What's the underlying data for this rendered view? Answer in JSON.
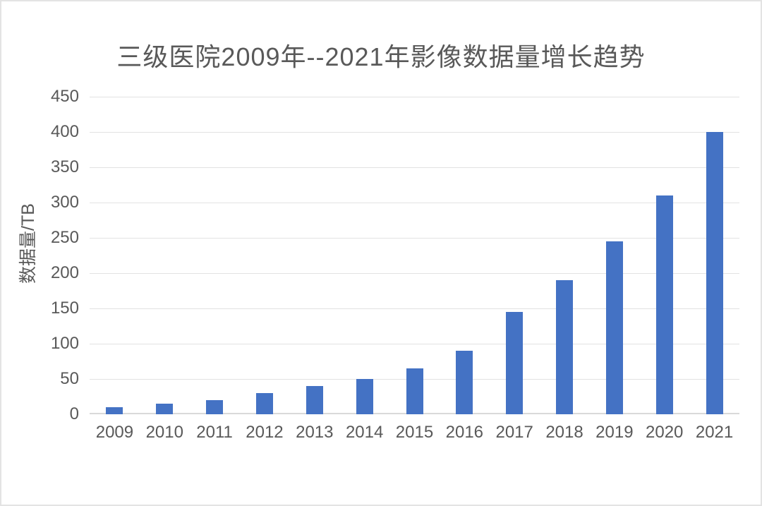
{
  "frame": {
    "background_color": "#ffffff",
    "border_color": "#e3e3e3"
  },
  "chart_data": {
    "type": "bar",
    "title": "三级医院2009年--2021年影像数据量增长趋势",
    "xlabel": "",
    "ylabel": "数据量/TB",
    "categories": [
      "2009",
      "2010",
      "2011",
      "2012",
      "2013",
      "2014",
      "2015",
      "2016",
      "2017",
      "2018",
      "2019",
      "2020",
      "2021"
    ],
    "values": [
      10,
      15,
      20,
      30,
      40,
      50,
      65,
      90,
      145,
      190,
      245,
      310,
      400
    ],
    "ylim": [
      0,
      450
    ],
    "ytick_step": 50,
    "ytick_labels": [
      "0",
      "50",
      "100",
      "150",
      "200",
      "250",
      "300",
      "350",
      "400",
      "450"
    ],
    "grid": true,
    "legend_position": "none",
    "bar_color": "#4472c4",
    "text_color": "#595959",
    "grid_color": "#e2e2e2",
    "baseline_color": "#d9d9d9"
  }
}
